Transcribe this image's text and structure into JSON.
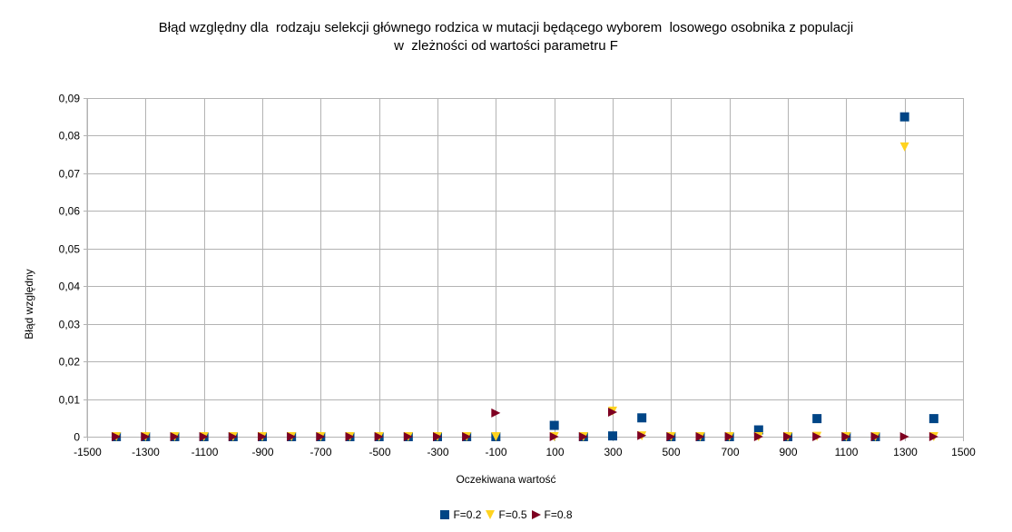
{
  "chart_data": {
    "type": "scatter",
    "title_lines": [
      "Błąd względny dla  rodzaju selekcji głównego rodzica w mutacji będącego wyborem  losowego osobnika z populacji",
      "w  zleżności od wartości parametru F"
    ],
    "xlabel": "Oczekiwana wartość",
    "ylabel": "Błąd względny",
    "xlim": [
      -1500,
      1500
    ],
    "ylim": [
      0,
      0.09
    ],
    "xticks": [
      -1500,
      -1300,
      -1100,
      -900,
      -700,
      -500,
      -300,
      -100,
      100,
      300,
      500,
      700,
      900,
      1100,
      1300,
      1500
    ],
    "xtick_labels": [
      "-1500",
      "-1300",
      "-1100",
      "-900",
      "-700",
      "-500",
      "-300",
      "-100",
      "100",
      "300",
      "500",
      "700",
      "900",
      "1100",
      "1300",
      "1500"
    ],
    "xgrid": [
      -1500,
      -1300,
      -1100,
      -900,
      -700,
      -500,
      -300,
      -100,
      100,
      300,
      500,
      700,
      900,
      1100,
      1300,
      1500
    ],
    "yticks": [
      0,
      0.01,
      0.02,
      0.03,
      0.04,
      0.05,
      0.06,
      0.07,
      0.08,
      0.09
    ],
    "ytick_labels": [
      "0",
      "0,01",
      "0,02",
      "0,03",
      "0,04",
      "0,05",
      "0,06",
      "0,07",
      "0,08",
      "0,09"
    ],
    "grid": true,
    "legend_position": "bottom",
    "series": [
      {
        "name": "F=0.2",
        "color": "#004586",
        "marker": "square",
        "x": [
          -1400,
          -1300,
          -1200,
          -1100,
          -1000,
          -900,
          -800,
          -700,
          -600,
          -500,
          -400,
          -300,
          -200,
          -100,
          100,
          200,
          300,
          400,
          500,
          600,
          700,
          800,
          900,
          1000,
          1100,
          1200,
          1300,
          1400
        ],
        "y": [
          0,
          0,
          0,
          0,
          0,
          0,
          0,
          0,
          0,
          0,
          0,
          0,
          0,
          0,
          0.003,
          0,
          0.0002,
          0.005,
          0,
          0,
          0,
          0.0018,
          0,
          0.0048,
          0,
          0,
          0.085,
          0.0048
        ]
      },
      {
        "name": "F=0.5",
        "color": "#ffd320",
        "marker": "triangle-down",
        "x": [
          -1400,
          -1300,
          -1200,
          -1100,
          -1000,
          -900,
          -800,
          -700,
          -600,
          -500,
          -400,
          -300,
          -200,
          -100,
          100,
          200,
          300,
          400,
          500,
          600,
          700,
          800,
          900,
          1000,
          1100,
          1200,
          1300,
          1400
        ],
        "y": [
          0,
          0,
          0,
          0,
          0,
          0,
          0,
          0,
          0,
          0,
          0,
          0,
          0,
          0,
          0,
          0,
          0.0068,
          0.0002,
          0,
          0,
          0,
          0,
          0,
          0.0001,
          0,
          0,
          0.077,
          0
        ]
      },
      {
        "name": "F=0.8",
        "color": "#7e0021",
        "marker": "triangle-right",
        "x": [
          -1400,
          -1300,
          -1200,
          -1100,
          -1000,
          -900,
          -800,
          -700,
          -600,
          -500,
          -400,
          -300,
          -200,
          -100,
          100,
          200,
          300,
          400,
          500,
          600,
          700,
          800,
          900,
          1000,
          1100,
          1200,
          1300,
          1400
        ],
        "y": [
          0,
          0,
          0,
          0,
          0,
          0,
          0,
          0,
          0,
          0,
          0,
          0,
          0,
          0.0063,
          0,
          0,
          0.0065,
          0.0003,
          0,
          0,
          0,
          0,
          0,
          0,
          0,
          0,
          0,
          0
        ]
      }
    ]
  }
}
